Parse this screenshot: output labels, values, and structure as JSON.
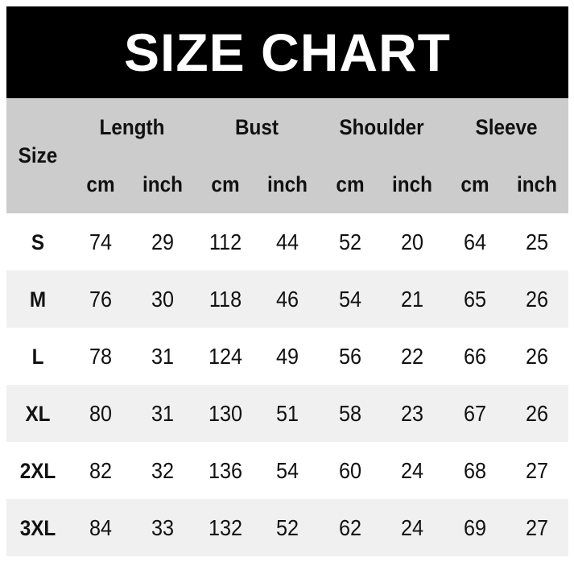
{
  "title": "SIZE CHART",
  "header": {
    "size_label": "Size",
    "groups": [
      "Length",
      "Bust",
      "Shoulder",
      "Sleeve"
    ],
    "units": [
      "cm",
      "inch",
      "cm",
      "inch",
      "cm",
      "inch",
      "cm",
      "inch"
    ]
  },
  "rows": [
    {
      "size": "S",
      "values": [
        "74",
        "29",
        "112",
        "44",
        "52",
        "20",
        "64",
        "25"
      ]
    },
    {
      "size": "M",
      "values": [
        "76",
        "30",
        "118",
        "46",
        "54",
        "21",
        "65",
        "26"
      ]
    },
    {
      "size": "L",
      "values": [
        "78",
        "31",
        "124",
        "49",
        "56",
        "22",
        "66",
        "26"
      ]
    },
    {
      "size": "XL",
      "values": [
        "80",
        "31",
        "130",
        "51",
        "58",
        "23",
        "67",
        "26"
      ]
    },
    {
      "size": "2XL",
      "values": [
        "82",
        "32",
        "136",
        "54",
        "60",
        "24",
        "68",
        "27"
      ]
    },
    {
      "size": "3XL",
      "values": [
        "84",
        "33",
        "132",
        "52",
        "62",
        "24",
        "69",
        "27"
      ]
    }
  ],
  "colors": {
    "title_bg": "#000000",
    "header_bg": "#cccccc",
    "alt_row_bg": "#f0f0f0"
  }
}
